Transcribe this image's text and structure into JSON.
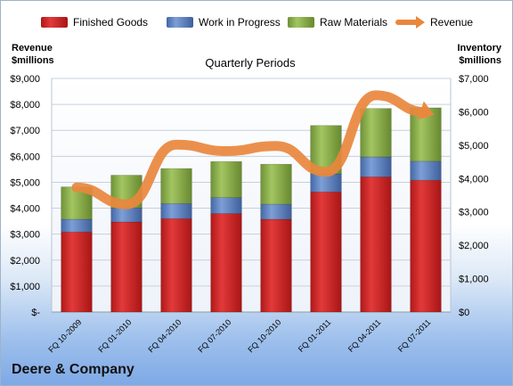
{
  "chart_data": {
    "type": "bar",
    "subtype": "stacked-bar-with-line",
    "title": "Quarterly Periods",
    "company": "Deere & Company",
    "categories": [
      "FQ 10-2009",
      "FQ 01-2010",
      "FQ 04-2010",
      "FQ 07-2010",
      "FQ 10-2010",
      "FQ 01-2011",
      "FQ 04-2011",
      "FQ 07-2011"
    ],
    "left_axis": {
      "label_line1": "Revenue",
      "label_line2": "$millions",
      "ticks": [
        "$-",
        "$1,000",
        "$2,000",
        "$3,000",
        "$4,000",
        "$5,000",
        "$6,000",
        "$7,000",
        "$8,000",
        "$9,000"
      ],
      "ylim": [
        0,
        9000
      ]
    },
    "right_axis": {
      "label_line1": "Inventory",
      "label_line2": "$millions",
      "ticks": [
        "$0",
        "$1,000",
        "$2,000",
        "$3,000",
        "$4,000",
        "$5,000",
        "$6,000",
        "$7,000"
      ],
      "ylim": [
        0,
        7000
      ]
    },
    "grid": true,
    "legend_position": "top",
    "series": [
      {
        "name": "Finished Goods",
        "axis": "right",
        "color": "#d42a2a",
        "values": [
          2400,
          2700,
          2800,
          2950,
          2780,
          3600,
          4050,
          3950
        ]
      },
      {
        "name": "Work in Progress",
        "axis": "right",
        "color": "#5b82c4",
        "values": [
          380,
          420,
          450,
          480,
          450,
          540,
          600,
          570
        ]
      },
      {
        "name": "Raw Materials",
        "axis": "right",
        "color": "#8cb04a",
        "values": [
          970,
          980,
          1050,
          1080,
          1200,
          1450,
          1450,
          1600
        ]
      },
      {
        "name": "Revenue",
        "axis": "left",
        "type": "line",
        "color": "#e9873d",
        "values": [
          4800,
          4150,
          6450,
          6200,
          6400,
          5400,
          8350,
          7700
        ]
      }
    ]
  }
}
